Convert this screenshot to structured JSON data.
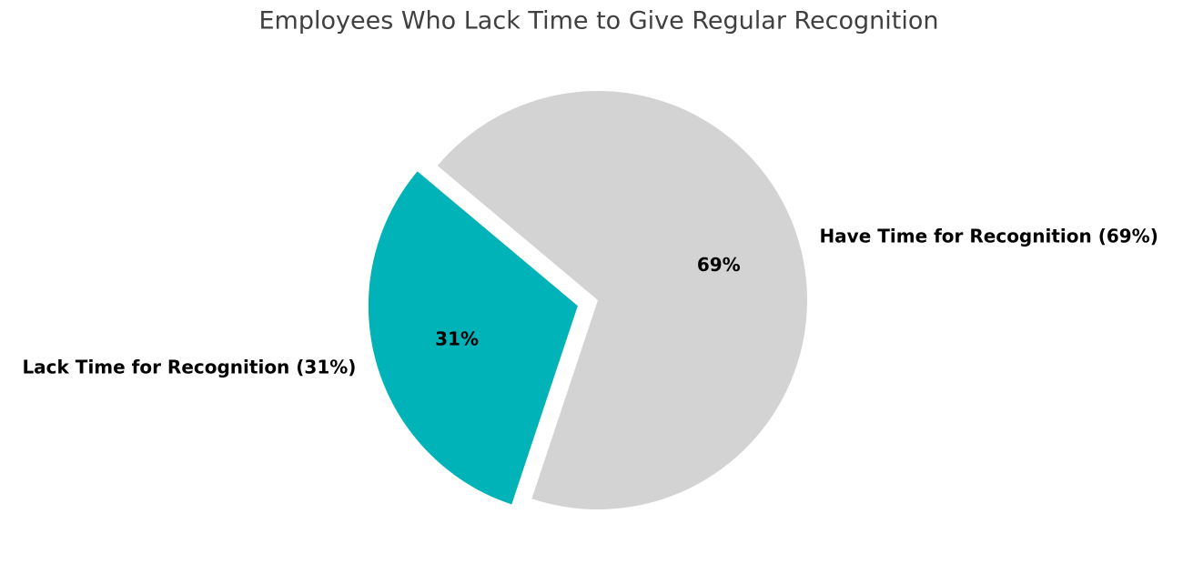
{
  "chart_data": {
    "type": "pie",
    "title": "Employees Who Lack Time to Give Regular Recognition",
    "categories": [
      "Lack Time for Recognition (31%)",
      "Have Time for Recognition (69%)"
    ],
    "values": [
      31,
      69
    ],
    "value_labels": [
      "31%",
      "69%"
    ],
    "colors": [
      "#00b3b8",
      "#d3d3d3"
    ],
    "explode": [
      0.1,
      0
    ],
    "startangle": 140
  }
}
